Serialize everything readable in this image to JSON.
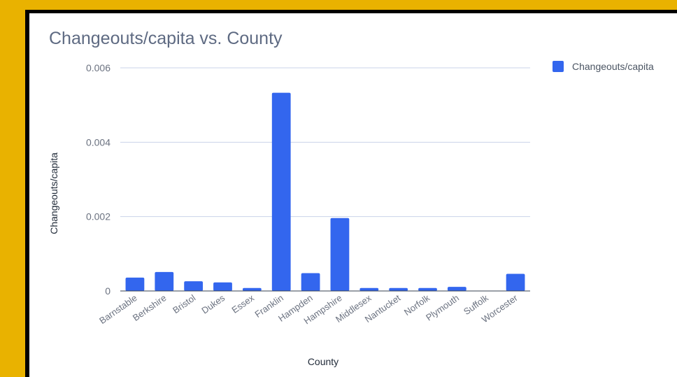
{
  "chart_data": {
    "type": "bar",
    "title": "Changeouts/capita vs. County",
    "xlabel": "County",
    "ylabel": "Changeouts/capita",
    "categories": [
      "Barnstable",
      "Berkshire",
      "Bristol",
      "Dukes",
      "Essex",
      "Franklin",
      "Hampden",
      "Hampshire",
      "Middlesex",
      "Nantucket",
      "Norfolk",
      "Plymouth",
      "Suffolk",
      "Worcester"
    ],
    "series": [
      {
        "name": "Changeouts/capita",
        "color": "#3366EE",
        "values": [
          0.00036,
          0.00051,
          0.00026,
          0.00023,
          8e-05,
          0.00533,
          0.00048,
          0.00196,
          8e-05,
          8e-05,
          8e-05,
          0.00011,
          0.0,
          0.00046
        ]
      }
    ],
    "ylim": [
      0,
      0.006
    ],
    "yticks": [
      0,
      0.002,
      0.004,
      0.006
    ],
    "ytick_labels": [
      "0",
      "0.002",
      "0.004",
      "0.006"
    ],
    "grid": true,
    "legend_position": "right"
  },
  "colors": {
    "background": "#E9B200",
    "frame": "#000000",
    "card": "#FFFFFF",
    "bar": "#3366EE",
    "grid": "#C9D3EA",
    "axis": "#374151"
  }
}
